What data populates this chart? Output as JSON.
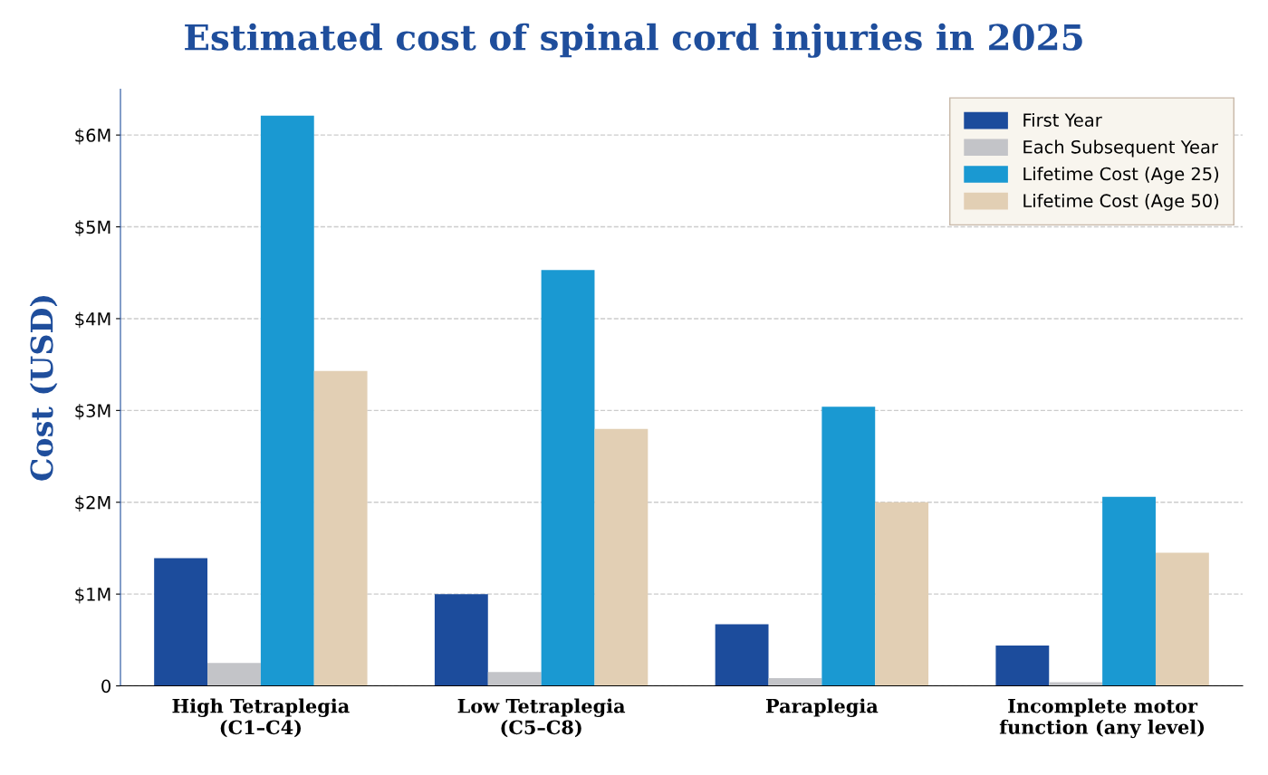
{
  "chart_data": {
    "type": "bar",
    "title": "Estimated cost of spinal cord injuries in 2025",
    "ylabel": "Cost (USD)",
    "categories": [
      "High Tetraplegia\n(C1–C4)",
      "Low Tetraplegia\n(C5–C8)",
      "Paraplegia",
      "Incomplete motor\nfunction (any level)"
    ],
    "series": [
      {
        "name": "First Year",
        "color": "#1c4c9c",
        "values": [
          1.39,
          1.0,
          0.67,
          0.44
        ]
      },
      {
        "name": "Each Subsequent Year",
        "color": "#c3c4c8",
        "values": [
          0.25,
          0.15,
          0.085,
          0.04
        ]
      },
      {
        "name": "Lifetime Cost (Age 25)",
        "color": "#1a99d2",
        "values": [
          6.21,
          4.53,
          3.04,
          2.06
        ]
      },
      {
        "name": "Lifetime Cost (Age 50)",
        "color": "#e2cfb4",
        "values": [
          3.43,
          2.8,
          2.0,
          1.45
        ]
      }
    ],
    "ylim": [
      0,
      6.5
    ],
    "yticks": [
      {
        "value": 0,
        "label": "0"
      },
      {
        "value": 1,
        "label": "$1M"
      },
      {
        "value": 2,
        "label": "$2M"
      },
      {
        "value": 3,
        "label": "$3M"
      },
      {
        "value": 4,
        "label": "$4M"
      },
      {
        "value": 5,
        "label": "$5M"
      },
      {
        "value": 6,
        "label": "$6M"
      }
    ],
    "grid": "y",
    "legend": "top right"
  }
}
